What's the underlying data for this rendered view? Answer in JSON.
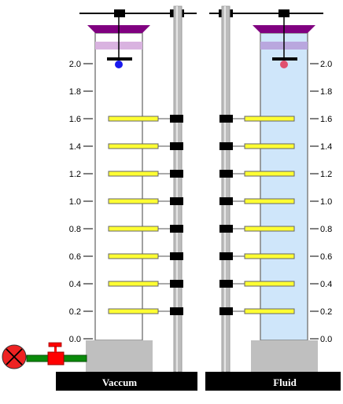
{
  "colors": {
    "tube_fill_fluid": "#cfe6fa",
    "tube_stroke": "#808080",
    "cap": "#800080",
    "cap_band_left": "#d9b3e0",
    "cap_band_right": "#b9a7de",
    "pole": "#bdbdbd",
    "pole_dark": "#9a9a9a",
    "plate": "#ffff33",
    "plate_stroke": "#666666",
    "clamp": "#000000",
    "base": "#bfbfbf",
    "ball_left": "#1a1aee",
    "ball_right": "#e0506e",
    "pipe": "#0a8a0a",
    "valve": "#ff0000",
    "pump": "#ee2222",
    "caption_bg": "#000000",
    "caption_text": "#ffffff"
  },
  "scale": {
    "labels": [
      "0.0",
      "0.2",
      "0.4",
      "0.6",
      "0.8",
      "1.0",
      "1.2",
      "1.4",
      "1.6",
      "1.8",
      "2.0"
    ]
  },
  "plates": {
    "levels": [
      0.2,
      0.4,
      0.6,
      0.8,
      1.0,
      1.2,
      1.4,
      1.6
    ]
  },
  "columns": {
    "left": {
      "caption": "Vaccum",
      "ball_level": 2.0
    },
    "right": {
      "caption": "Fluid",
      "ball_level": 2.0
    }
  },
  "icons": {
    "pump": "pump-icon",
    "valve": "valve-icon"
  }
}
